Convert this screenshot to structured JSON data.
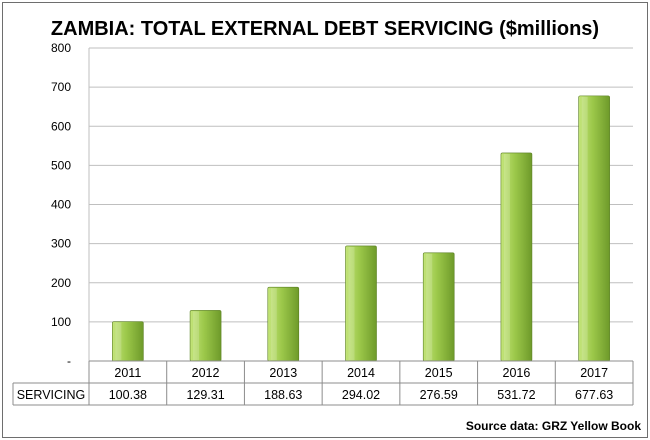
{
  "colors": {
    "bar_light": "#c4e57a",
    "bar_mid": "#9cc84a",
    "bar_dark": "#6e9a2a",
    "grid": "#bfbfbf",
    "table_border": "#8c8c8c"
  },
  "chart_data": {
    "type": "bar",
    "title": "ZAMBIA: TOTAL EXTERNAL DEBT SERVICING ($millions)",
    "categories": [
      "2011",
      "2012",
      "2013",
      "2014",
      "2015",
      "2016",
      "2017"
    ],
    "series": [
      {
        "name": "SERVICING",
        "values": [
          100.38,
          129.31,
          188.63,
          294.02,
          276.59,
          531.72,
          677.63
        ],
        "value_labels": [
          "100.38",
          "129.31",
          "188.63",
          "294.02",
          "276.59",
          "531.72",
          "677.63"
        ]
      }
    ],
    "ylim": [
      0,
      800
    ],
    "yticks": [
      0,
      100,
      200,
      300,
      400,
      500,
      600,
      700,
      800
    ],
    "ytick_labels": [
      "-",
      "100",
      "200",
      "300",
      "400",
      "500",
      "600",
      "700",
      "800"
    ],
    "grid": true,
    "data_table": true,
    "source": "Source data: GRZ Yellow Book"
  }
}
